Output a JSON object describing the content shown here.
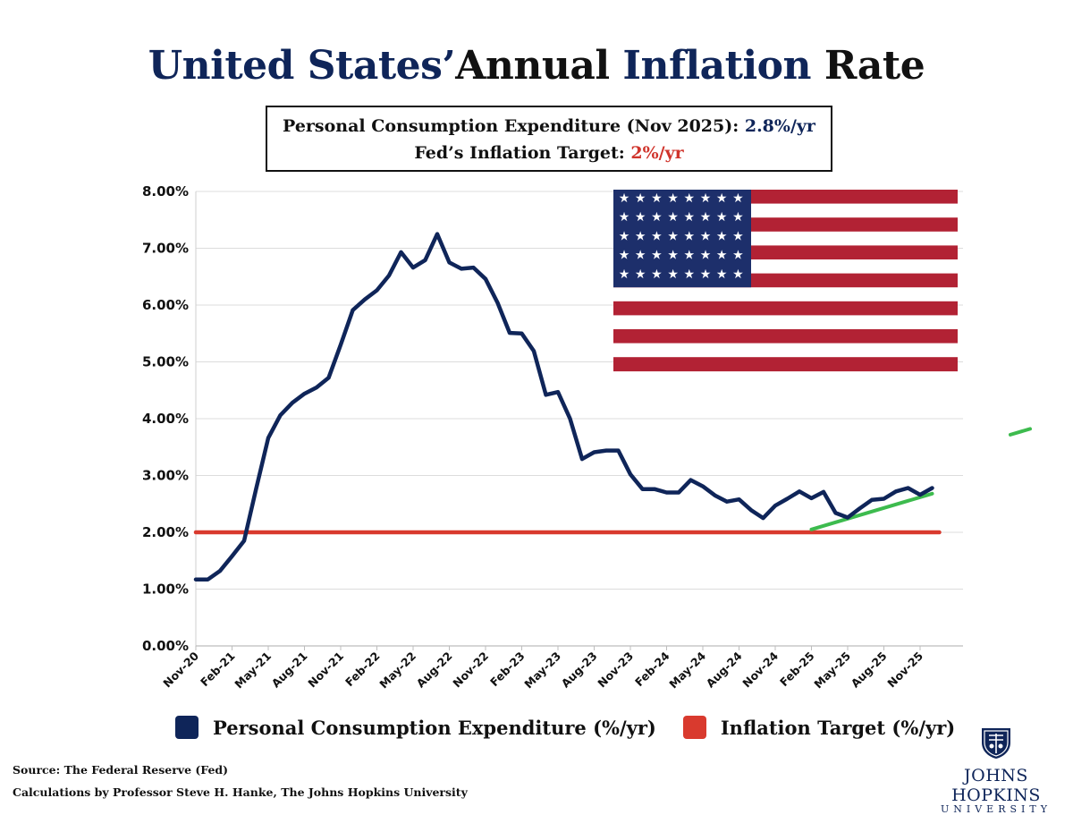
{
  "title": {
    "part1": "United States’",
    "part2": "Annual ",
    "part3": "Inflation",
    "part4": " Rate"
  },
  "infobox": {
    "line1_label": "Personal Consumption Expenditure (Nov 2025): ",
    "line1_value": "2.8%/yr",
    "line2_label": "Fed’s Inflation Target: ",
    "line2_value": "2%/yr"
  },
  "colors": {
    "pce": "#0f2559",
    "target": "#d93a2e",
    "trend": "#3dbb4e",
    "flag_red": "#b22234",
    "flag_blue": "#1d2f6b"
  },
  "chart_data": {
    "type": "line",
    "ylim": [
      0,
      8
    ],
    "yticks": [
      "0.00%",
      "1.00%",
      "2.00%",
      "3.00%",
      "4.00%",
      "5.00%",
      "6.00%",
      "7.00%",
      "8.00%"
    ],
    "xtick_labels": [
      "Nov-20",
      "Feb-21",
      "May-21",
      "Aug-21",
      "Nov-21",
      "Feb-22",
      "May-22",
      "Aug-22",
      "Nov-22",
      "Feb-23",
      "May-23",
      "Aug-23",
      "Nov-23",
      "Feb-24",
      "May-24",
      "Aug-24",
      "Nov-24",
      "Feb-25",
      "May-25",
      "Aug-25",
      "Nov-25"
    ],
    "grid": true,
    "series": [
      {
        "name": "Personal Consumption Expenditure (%/yr)",
        "start": "Nov-20",
        "values": [
          1.17,
          1.17,
          1.32,
          1.58,
          1.85,
          2.77,
          3.66,
          4.06,
          4.28,
          4.44,
          4.55,
          4.72,
          5.3,
          5.91,
          6.1,
          6.26,
          6.52,
          6.93,
          6.66,
          6.79,
          7.25,
          6.75,
          6.64,
          6.66,
          6.46,
          6.04,
          5.51,
          5.5,
          5.19,
          4.42,
          4.47,
          4.0,
          3.29,
          3.41,
          3.44,
          3.44,
          3.02,
          2.76,
          2.76,
          2.7,
          2.7,
          2.92,
          2.81,
          2.65,
          2.54,
          2.58,
          2.39,
          2.25,
          2.47,
          2.59,
          2.72,
          2.6,
          2.71,
          2.34,
          2.26,
          2.42,
          2.57,
          2.59,
          2.72,
          2.78,
          2.66,
          2.78
        ]
      },
      {
        "name": "Inflation Target (%/yr)",
        "values": [
          2.0
        ]
      }
    ],
    "trend_line": {
      "from": "Feb-25",
      "to": "Nov-25",
      "start_value": 2.05,
      "end_value": 2.68
    }
  },
  "legend": [
    {
      "label": "Personal Consumption Expenditure (%/yr)"
    },
    {
      "label": "Inflation Target (%/yr)"
    }
  ],
  "footer": {
    "source": "Source: The Federal Reserve (Fed)",
    "calc": "Calculations by Professor Steve H. Hanke, The Johns Hopkins University"
  },
  "logo": {
    "name": "JOHNS HOPKINS",
    "sub": "UNIVERSITY"
  }
}
